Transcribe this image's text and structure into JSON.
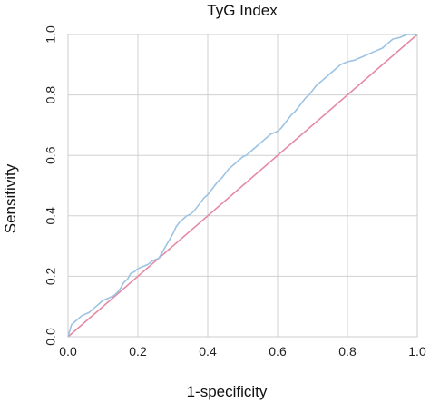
{
  "chart_data": {
    "type": "line",
    "title": "TyG Index",
    "xlabel": "1-specificity",
    "ylabel": "Sensitivity",
    "xlim": [
      0,
      1
    ],
    "ylim": [
      0,
      1
    ],
    "x_ticks": [
      "0.0",
      "0.2",
      "0.4",
      "0.6",
      "0.8",
      "1.0"
    ],
    "y_ticks": [
      "0.0",
      "0.2",
      "0.4",
      "0.6",
      "0.8",
      "1.0"
    ],
    "grid": true,
    "legend": "none",
    "colors": {
      "roc_curve": "#9cc3e4",
      "reference_line": "#e58aa5",
      "grid": "#d0d0d0",
      "frame": "#cccccc"
    },
    "series": [
      {
        "values": [
          [
            0.0,
            0.0
          ],
          [
            0.005,
            0.02
          ],
          [
            0.01,
            0.04
          ],
          [
            0.02,
            0.05
          ],
          [
            0.03,
            0.06
          ],
          [
            0.04,
            0.07
          ],
          [
            0.05,
            0.075
          ],
          [
            0.06,
            0.08
          ],
          [
            0.07,
            0.09
          ],
          [
            0.08,
            0.1
          ],
          [
            0.09,
            0.11
          ],
          [
            0.1,
            0.12
          ],
          [
            0.11,
            0.125
          ],
          [
            0.12,
            0.13
          ],
          [
            0.13,
            0.135
          ],
          [
            0.14,
            0.145
          ],
          [
            0.15,
            0.16
          ],
          [
            0.16,
            0.18
          ],
          [
            0.17,
            0.19
          ],
          [
            0.18,
            0.21
          ],
          [
            0.19,
            0.215
          ],
          [
            0.2,
            0.225
          ],
          [
            0.21,
            0.23
          ],
          [
            0.22,
            0.235
          ],
          [
            0.23,
            0.24
          ],
          [
            0.24,
            0.25
          ],
          [
            0.25,
            0.255
          ],
          [
            0.26,
            0.26
          ],
          [
            0.27,
            0.28
          ],
          [
            0.28,
            0.3
          ],
          [
            0.29,
            0.32
          ],
          [
            0.3,
            0.34
          ],
          [
            0.31,
            0.365
          ],
          [
            0.32,
            0.38
          ],
          [
            0.33,
            0.39
          ],
          [
            0.34,
            0.4
          ],
          [
            0.35,
            0.405
          ],
          [
            0.36,
            0.415
          ],
          [
            0.37,
            0.43
          ],
          [
            0.38,
            0.445
          ],
          [
            0.39,
            0.46
          ],
          [
            0.4,
            0.47
          ],
          [
            0.41,
            0.485
          ],
          [
            0.42,
            0.5
          ],
          [
            0.43,
            0.515
          ],
          [
            0.44,
            0.525
          ],
          [
            0.45,
            0.54
          ],
          [
            0.46,
            0.555
          ],
          [
            0.47,
            0.565
          ],
          [
            0.48,
            0.575
          ],
          [
            0.49,
            0.585
          ],
          [
            0.5,
            0.595
          ],
          [
            0.51,
            0.6
          ],
          [
            0.52,
            0.61
          ],
          [
            0.53,
            0.62
          ],
          [
            0.54,
            0.63
          ],
          [
            0.55,
            0.64
          ],
          [
            0.56,
            0.65
          ],
          [
            0.57,
            0.66
          ],
          [
            0.58,
            0.67
          ],
          [
            0.59,
            0.675
          ],
          [
            0.6,
            0.68
          ],
          [
            0.61,
            0.69
          ],
          [
            0.62,
            0.705
          ],
          [
            0.63,
            0.72
          ],
          [
            0.64,
            0.735
          ],
          [
            0.65,
            0.745
          ],
          [
            0.66,
            0.76
          ],
          [
            0.67,
            0.775
          ],
          [
            0.68,
            0.79
          ],
          [
            0.69,
            0.8
          ],
          [
            0.7,
            0.815
          ],
          [
            0.71,
            0.83
          ],
          [
            0.72,
            0.84
          ],
          [
            0.73,
            0.85
          ],
          [
            0.74,
            0.86
          ],
          [
            0.75,
            0.87
          ],
          [
            0.76,
            0.88
          ],
          [
            0.77,
            0.89
          ],
          [
            0.78,
            0.9
          ],
          [
            0.79,
            0.905
          ],
          [
            0.8,
            0.91
          ],
          [
            0.82,
            0.915
          ],
          [
            0.84,
            0.925
          ],
          [
            0.86,
            0.935
          ],
          [
            0.88,
            0.945
          ],
          [
            0.9,
            0.955
          ],
          [
            0.91,
            0.965
          ],
          [
            0.92,
            0.975
          ],
          [
            0.93,
            0.985
          ],
          [
            0.95,
            0.99
          ],
          [
            0.97,
            1.0
          ],
          [
            1.0,
            1.0
          ]
        ]
      },
      {
        "values": [
          [
            0.0,
            0.0
          ],
          [
            1.0,
            1.0
          ]
        ]
      }
    ]
  }
}
